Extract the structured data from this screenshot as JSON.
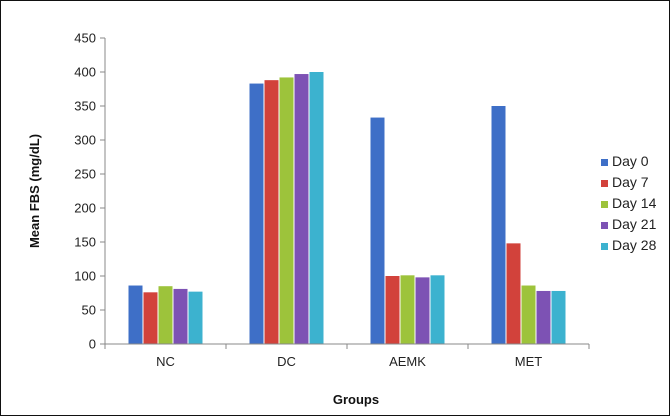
{
  "chart_data": {
    "type": "bar",
    "title": "",
    "xlabel": "Groups",
    "ylabel": "Mean FBS (mg/dL)",
    "categories": [
      "NC",
      "DC",
      "AEMK",
      "MET"
    ],
    "ylim": [
      0,
      450
    ],
    "yticks": [
      0,
      50,
      100,
      150,
      200,
      250,
      300,
      350,
      400,
      450
    ],
    "grid": false,
    "legend_position": "right",
    "series": [
      {
        "name": "Day 0",
        "color": "#3e6fc7",
        "values": [
          86,
          383,
          333,
          350
        ]
      },
      {
        "name": "Day 7",
        "color": "#d2423b",
        "values": [
          76,
          388,
          100,
          148
        ]
      },
      {
        "name": "Day 14",
        "color": "#9dc33b",
        "values": [
          85,
          392,
          101,
          86
        ]
      },
      {
        "name": "Day 21",
        "color": "#7d52b4",
        "values": [
          81,
          397,
          98,
          78
        ]
      },
      {
        "name": "Day 28",
        "color": "#3cb2cf",
        "values": [
          77,
          400,
          101,
          78
        ]
      }
    ]
  }
}
